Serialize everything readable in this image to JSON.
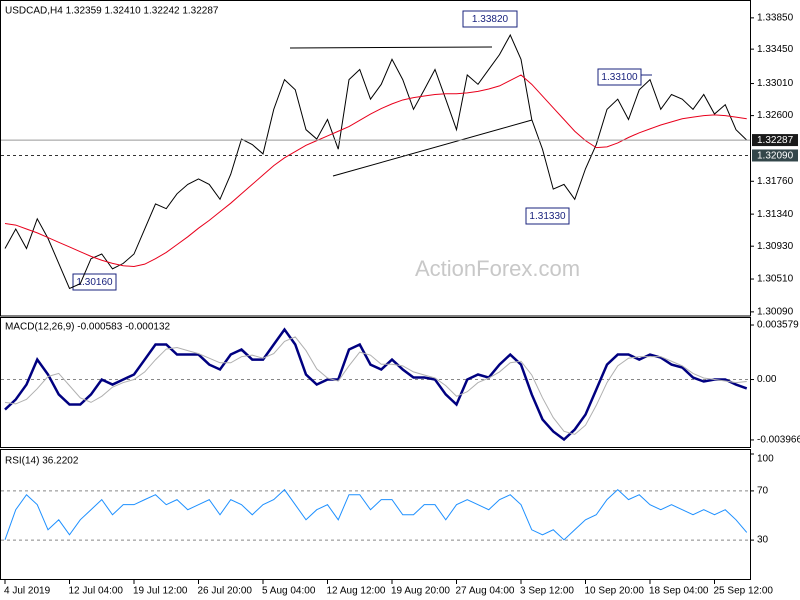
{
  "chart_data": [
    {
      "type": "line",
      "title": "USDCAD,H4  1.32359 1.32410 1.32242 1.32287",
      "watermark": "ActionForex.com",
      "categories": [
        "4 Jul 2019",
        null,
        null,
        null,
        null,
        null,
        "12 Jul 04:00",
        null,
        null,
        null,
        null,
        null,
        "19 Jul 12:00",
        null,
        null,
        null,
        null,
        null,
        "26 Jul 20:00",
        null,
        null,
        null,
        null,
        null,
        "5 Aug 04:00",
        null,
        null,
        null,
        null,
        null,
        "12 Aug 12:00",
        null,
        null,
        null,
        null,
        null,
        "19 Aug 20:00",
        null,
        null,
        null,
        null,
        null,
        "27 Aug 04:00",
        null,
        null,
        null,
        null,
        null,
        "3 Sep 12:00",
        null,
        null,
        null,
        null,
        null,
        "10 Sep 20:00",
        null,
        null,
        null,
        null,
        null,
        "18 Sep 04:00",
        null,
        null,
        null,
        null,
        null,
        "25 Sep 12:00",
        null,
        null,
        null
      ],
      "series": [
        {
          "name": "USDCAD",
          "color": "#000000",
          "values": [
            1.309,
            1.3115,
            1.309,
            1.3128,
            1.3103,
            1.3071,
            1.3039,
            1.3045,
            1.3077,
            1.3083,
            1.3064,
            1.3071,
            1.3083,
            1.3115,
            1.3147,
            1.3141,
            1.316,
            1.3172,
            1.3179,
            1.3172,
            1.3153,
            1.3185,
            1.323,
            1.3223,
            1.3211,
            1.3268,
            1.3306,
            1.3293,
            1.3242,
            1.323,
            1.3255,
            1.3217,
            1.3306,
            1.3319,
            1.3281,
            1.33,
            1.3332,
            1.3306,
            1.3268,
            1.3293,
            1.3319,
            1.3281,
            1.3242,
            1.3312,
            1.33,
            1.3319,
            1.3338,
            1.3363,
            1.3332,
            1.3255,
            1.3217,
            1.3166,
            1.3172,
            1.3153,
            1.3192,
            1.3223,
            1.3268,
            1.3281,
            1.3255,
            1.3293,
            1.3306,
            1.3268,
            1.3287,
            1.3281,
            1.3268,
            1.3287,
            1.3262,
            1.3274,
            1.3242,
            1.32287
          ]
        },
        {
          "name": "MA",
          "color": "#e8001c",
          "values": [
            1.3122,
            1.312,
            1.3115,
            1.311,
            1.3104,
            1.3098,
            1.3092,
            1.3086,
            1.308,
            1.3075,
            1.3071,
            1.3068,
            1.3067,
            1.307,
            1.3077,
            1.3085,
            1.3095,
            1.3105,
            1.3116,
            1.3126,
            1.3137,
            1.3148,
            1.316,
            1.3172,
            1.3184,
            1.3196,
            1.3206,
            1.3214,
            1.3222,
            1.3228,
            1.3234,
            1.324,
            1.3246,
            1.3254,
            1.3262,
            1.3269,
            1.3275,
            1.328,
            1.3283,
            1.3285,
            1.3287,
            1.3288,
            1.3288,
            1.3289,
            1.3291,
            1.3294,
            1.3298,
            1.3305,
            1.3312,
            1.33,
            1.3285,
            1.327,
            1.3255,
            1.324,
            1.3228,
            1.3219,
            1.322,
            1.3225,
            1.3232,
            1.3238,
            1.3243,
            1.3248,
            1.3252,
            1.3256,
            1.3258,
            1.326,
            1.3261,
            1.326,
            1.3258,
            1.3256
          ]
        }
      ],
      "ylim": [
        1.3005,
        1.3404
      ],
      "yticks": [
        {
          "value": 1.3385,
          "label": "1.33850"
        },
        {
          "value": 1.3345,
          "label": "1.33450"
        },
        {
          "value": 1.3301,
          "label": "1.33010"
        },
        {
          "value": 1.326,
          "label": "1.32600"
        },
        {
          "value": 1.3176,
          "label": "1.31760"
        },
        {
          "value": 1.3134,
          "label": "1.31340"
        },
        {
          "value": 1.3093,
          "label": "1.30930"
        },
        {
          "value": 1.3051,
          "label": "1.30510"
        },
        {
          "value": 1.3009,
          "label": "1.30090"
        }
      ],
      "price_levels": [
        1.32287,
        {
          "value": 1.3209,
          "label": "1.32090"
        }
      ],
      "annotations": [
        "1.33820",
        "1.33100",
        "1.31330",
        "1.30160"
      ]
    },
    {
      "type": "line",
      "title": "MACD(12,26,9) -0.000583 -0.000132",
      "series": [
        {
          "name": "MACD",
          "color": "#000080",
          "values": [
            -0.00197,
            -0.00131,
            -0.00033,
            0.00131,
            0.00033,
            -0.00098,
            -0.00164,
            -0.00164,
            -0.00098,
            0,
            -0.00033,
            0,
            0.00033,
            0.00131,
            0.0023,
            0.0023,
            0.00164,
            0.00164,
            0.00164,
            0.00098,
            0.00066,
            0.00164,
            0.00197,
            0.00131,
            0.00131,
            0.0023,
            0.00328,
            0.0023,
            0.00033,
            -0.00033,
            0,
            0,
            0.00197,
            0.0023,
            0.00098,
            0.00066,
            0.00131,
            0.00066,
            0.00013,
            0.00013,
            0,
            -0.00098,
            -0.00164,
            0,
            0.00033,
            0.00013,
            0.00098,
            0.00164,
            0.00098,
            -0.00098,
            -0.00262,
            -0.00341,
            -0.00394,
            -0.00328,
            -0.0023,
            -0.00066,
            0.00098,
            0.00164,
            0.00164,
            0.00131,
            0.00164,
            0.00144,
            0.00098,
            0.00079,
            0.00013,
            -0.00013,
            0,
            0,
            -0.00033,
            -0.000583
          ]
        },
        {
          "name": "Signal",
          "color": "#b0b0b0",
          "values": [
            -0.0015,
            -0.0016,
            -0.0013,
            -0.0006,
            0.0002,
            0.0004,
            -0.0004,
            -0.0012,
            -0.0015,
            -0.0011,
            -0.0005,
            -0.0002,
            0,
            0.0005,
            0.0013,
            0.002,
            0.0021,
            0.0019,
            0.0017,
            0.0014,
            0.0011,
            0.0011,
            0.0015,
            0.0016,
            0.0014,
            0.0017,
            0.0025,
            0.0028,
            0.0019,
            0.0007,
            0.0001,
            -0.0001,
            0.0009,
            0.0018,
            0.0016,
            0.001,
            0.001,
            0.0009,
            0.0005,
            0.0003,
            0.0001,
            -0.0004,
            -0.0011,
            -0.0008,
            -0.0002,
            0.0001,
            0.0005,
            0.0011,
            0.0012,
            0.0003,
            -0.0012,
            -0.0025,
            -0.0034,
            -0.0036,
            -0.003,
            -0.0017,
            -0.0002,
            0.0009,
            0.0014,
            0.0015,
            0.0015,
            0.0015,
            0.0012,
            0.0009,
            0.0004,
            0.0001,
            0,
            -0.0001,
            -0.0002,
            -0.000132
          ]
        }
      ],
      "ylim": [
        -0.00443,
        0.00404
      ],
      "yticks": [
        0.003579,
        {
          "value": 0,
          "label": "0.00"
        },
        -0.003966
      ],
      "levels": [
        0
      ]
    },
    {
      "type": "line",
      "title": "RSI(14) 36.2202",
      "series": [
        {
          "name": "RSI",
          "color": "#1e90ff",
          "values": [
            30.2,
            54.7,
            66.9,
            58.8,
            38.4,
            46.5,
            34.3,
            46.5,
            54.7,
            62.9,
            50.6,
            58.8,
            58.8,
            62.9,
            66.9,
            58.8,
            62.9,
            54.7,
            58.8,
            62.9,
            50.6,
            62.9,
            58.8,
            50.6,
            58.8,
            62.9,
            71.0,
            58.8,
            46.5,
            54.7,
            58.8,
            46.5,
            66.9,
            66.9,
            54.7,
            62.9,
            62.9,
            50.6,
            50.6,
            58.8,
            58.8,
            46.5,
            58.8,
            62.9,
            58.8,
            54.7,
            62.9,
            66.9,
            58.8,
            38.4,
            34.3,
            38.4,
            30.2,
            38.4,
            46.5,
            50.6,
            62.9,
            71.0,
            62.9,
            66.9,
            58.8,
            54.7,
            58.8,
            54.7,
            50.6,
            54.7,
            50.6,
            54.7,
            46.5,
            36.2202
          ]
        }
      ],
      "ylim": [
        0,
        100
      ],
      "yticks": [
        100,
        70,
        30
      ],
      "levels": [
        70,
        30
      ]
    }
  ]
}
